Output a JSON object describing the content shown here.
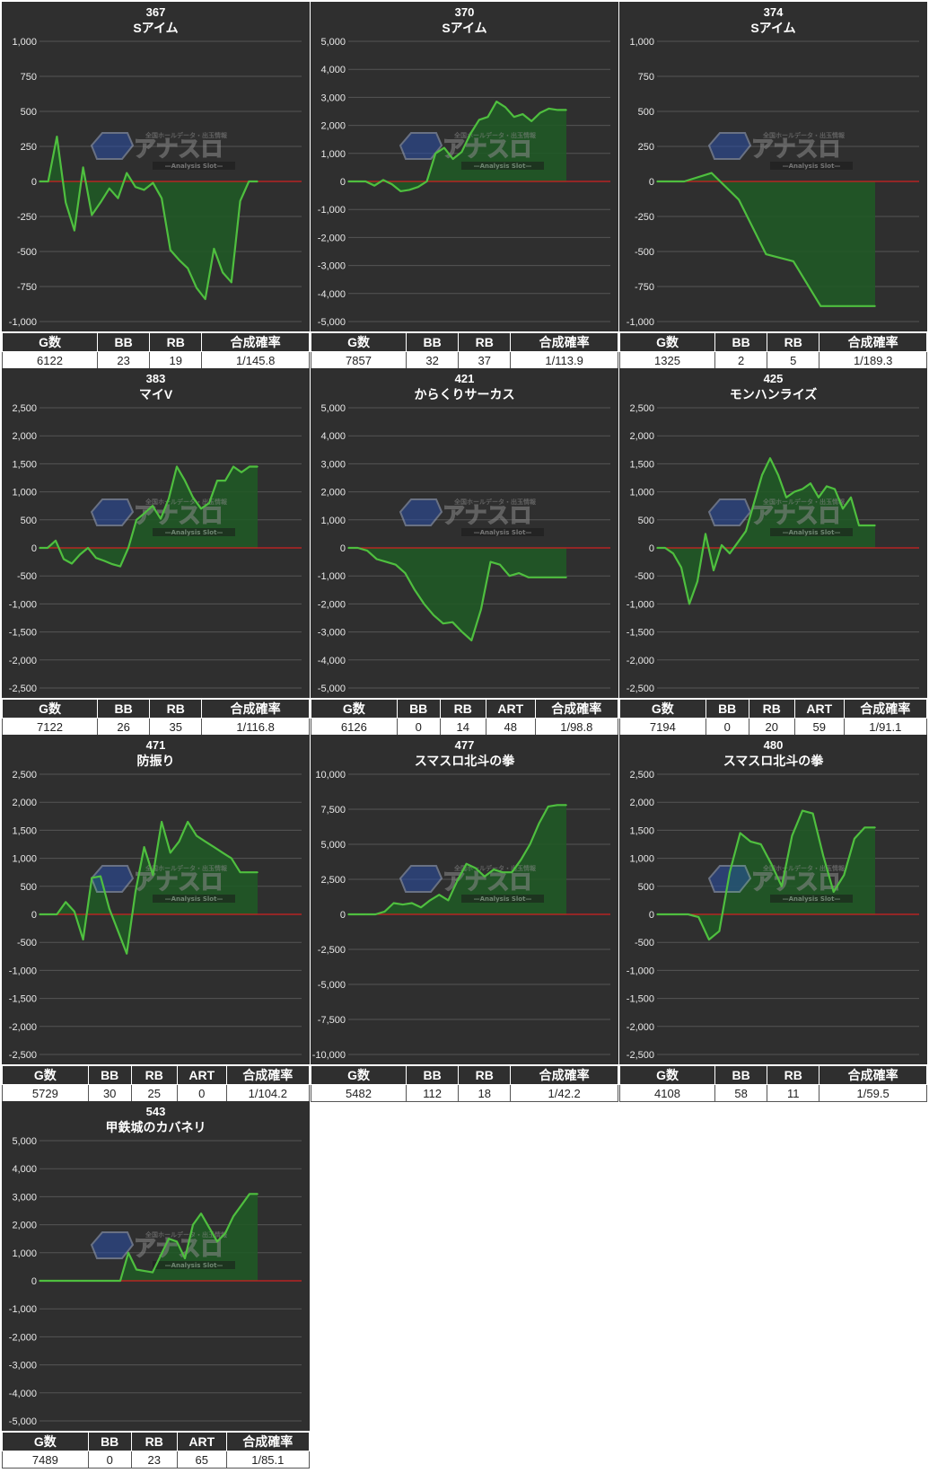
{
  "watermark": {
    "main": "アナスロ",
    "sub": "—Analysis Slot—",
    "top": "全国ホールデータ・出玉情報"
  },
  "colors": {
    "background": "#2f2f2f",
    "line": "#4fbf3f",
    "fill": "#1f5a24",
    "zero_line": "#d02020",
    "grid": "#555555"
  },
  "panels": [
    {
      "number": "367",
      "name": "Sアイム",
      "stats": {
        "headers": [
          "G数",
          "BB",
          "RB",
          "合成確率"
        ],
        "values": [
          "6122",
          "23",
          "19",
          "1/145.8"
        ]
      },
      "chart_data": {
        "type": "area",
        "ylim": [
          -1000,
          1000
        ],
        "yticks": [
          1000,
          750,
          500,
          250,
          0,
          -250,
          -500,
          -750,
          -1000
        ],
        "y": [
          0,
          0,
          320,
          -150,
          -350,
          100,
          -240,
          -150,
          -50,
          -120,
          60,
          -40,
          -60,
          -10,
          -120,
          -490,
          -560,
          -620,
          -760,
          -840,
          -480,
          -650,
          -720,
          -140,
          0,
          0
        ]
      }
    },
    {
      "number": "370",
      "name": "Sアイム",
      "stats": {
        "headers": [
          "G数",
          "BB",
          "RB",
          "合成確率"
        ],
        "values": [
          "7857",
          "32",
          "37",
          "1/113.9"
        ]
      },
      "chart_data": {
        "type": "area",
        "ylim": [
          -5000,
          5000
        ],
        "yticks": [
          5000,
          4000,
          3000,
          2000,
          1000,
          0,
          -1000,
          -2000,
          -3000,
          -4000,
          -5000
        ],
        "y": [
          0,
          0,
          0,
          -150,
          50,
          -100,
          -350,
          -300,
          -200,
          0,
          1000,
          1200,
          800,
          1050,
          1700,
          2200,
          2300,
          2850,
          2650,
          2300,
          2400,
          2150,
          2450,
          2600,
          2550,
          2550
        ]
      }
    },
    {
      "number": "374",
      "name": "Sアイム",
      "stats": {
        "headers": [
          "G数",
          "BB",
          "RB",
          "合成確率"
        ],
        "values": [
          "1325",
          "2",
          "5",
          "1/189.3"
        ]
      },
      "chart_data": {
        "type": "area",
        "ylim": [
          -1000,
          1000
        ],
        "yticks": [
          1000,
          750,
          500,
          250,
          0,
          -250,
          -500,
          -750,
          -1000
        ],
        "y": [
          0,
          0,
          60,
          -130,
          -520,
          -570,
          -890,
          -890,
          -890
        ]
      }
    },
    {
      "number": "383",
      "name": "マイV",
      "stats": {
        "headers": [
          "G数",
          "BB",
          "RB",
          "合成確率"
        ],
        "values": [
          "7122",
          "26",
          "35",
          "1/116.8"
        ]
      },
      "chart_data": {
        "type": "area",
        "ylim": [
          -2500,
          2500
        ],
        "yticks": [
          2500,
          2000,
          1500,
          1000,
          500,
          0,
          -500,
          -1000,
          -1500,
          -2000,
          -2500
        ],
        "y": [
          0,
          0,
          130,
          -200,
          -280,
          -120,
          0,
          -180,
          -230,
          -290,
          -330,
          0,
          500,
          620,
          750,
          520,
          880,
          1450,
          1200,
          900,
          700,
          800,
          1200,
          1200,
          1450,
          1350,
          1450,
          1450
        ]
      }
    },
    {
      "number": "421",
      "name": "からくりサーカス",
      "stats": {
        "headers": [
          "G数",
          "BB",
          "RB",
          "ART",
          "合成確率"
        ],
        "values": [
          "6126",
          "0",
          "14",
          "48",
          "1/98.8"
        ]
      },
      "chart_data": {
        "type": "area",
        "ylim": [
          -5000,
          5000
        ],
        "yticks": [
          5000,
          4000,
          3000,
          2000,
          1000,
          0,
          -1000,
          -2000,
          -3000,
          -4000,
          -5000
        ],
        "y": [
          0,
          0,
          -100,
          -400,
          -500,
          -600,
          -900,
          -1500,
          -2000,
          -2400,
          -2700,
          -2650,
          -3000,
          -3300,
          -2200,
          -500,
          -600,
          -1000,
          -900,
          -1050,
          -1050,
          -1050,
          -1050,
          -1050
        ]
      }
    },
    {
      "number": "425",
      "name": "モンハンライズ",
      "stats": {
        "headers": [
          "G数",
          "BB",
          "RB",
          "ART",
          "合成確率"
        ],
        "values": [
          "7194",
          "0",
          "20",
          "59",
          "1/91.1"
        ]
      },
      "chart_data": {
        "type": "area",
        "ylim": [
          -2500,
          2500
        ],
        "yticks": [
          2500,
          2000,
          1500,
          1000,
          500,
          0,
          -500,
          -1000,
          -1500,
          -2000,
          -2500
        ],
        "y": [
          0,
          0,
          -100,
          -350,
          -1000,
          -600,
          250,
          -400,
          50,
          -100,
          100,
          300,
          800,
          1300,
          1600,
          1300,
          900,
          1000,
          1050,
          1150,
          900,
          1100,
          1050,
          700,
          900,
          400,
          400,
          400
        ]
      }
    },
    {
      "number": "471",
      "name": "防振り",
      "stats": {
        "headers": [
          "G数",
          "BB",
          "RB",
          "ART",
          "合成確率"
        ],
        "values": [
          "5729",
          "30",
          "25",
          "0",
          "1/104.2"
        ]
      },
      "chart_data": {
        "type": "area",
        "ylim": [
          -2500,
          2500
        ],
        "yticks": [
          2500,
          2000,
          1500,
          1000,
          500,
          0,
          -500,
          -1000,
          -1500,
          -2000,
          -2500
        ],
        "y": [
          0,
          0,
          0,
          220,
          50,
          -450,
          650,
          680,
          100,
          -300,
          -700,
          400,
          1200,
          700,
          1650,
          1100,
          1300,
          1650,
          1400,
          1300,
          1200,
          1100,
          1000,
          750,
          750,
          750
        ]
      }
    },
    {
      "number": "477",
      "name": "スマスロ北斗の拳",
      "stats": {
        "headers": [
          "G数",
          "BB",
          "RB",
          "合成確率"
        ],
        "values": [
          "5482",
          "112",
          "18",
          "1/42.2"
        ]
      },
      "chart_data": {
        "type": "area",
        "ylim": [
          -10000,
          10000
        ],
        "yticks": [
          10000,
          7500,
          5000,
          2500,
          0,
          -2500,
          -5000,
          -7500,
          -10000
        ],
        "y": [
          0,
          0,
          0,
          0,
          200,
          800,
          700,
          800,
          500,
          1000,
          1400,
          1000,
          2400,
          3600,
          3300,
          2700,
          3200,
          3000,
          3000,
          3900,
          5000,
          6500,
          7700,
          7800,
          7800
        ]
      }
    },
    {
      "number": "480",
      "name": "スマスロ北斗の拳",
      "stats": {
        "headers": [
          "G数",
          "BB",
          "RB",
          "合成確率"
        ],
        "values": [
          "4108",
          "58",
          "11",
          "1/59.5"
        ]
      },
      "chart_data": {
        "type": "area",
        "ylim": [
          -2500,
          2500
        ],
        "yticks": [
          2500,
          2000,
          1500,
          1000,
          500,
          0,
          -500,
          -1000,
          -1500,
          -2000,
          -2500
        ],
        "y": [
          0,
          0,
          0,
          0,
          -50,
          -450,
          -300,
          750,
          1450,
          1300,
          1250,
          900,
          500,
          1400,
          1850,
          1800,
          1050,
          400,
          700,
          1350,
          1550,
          1550
        ]
      }
    },
    {
      "number": "543",
      "name": "甲鉄城のカバネリ",
      "stats": {
        "headers": [
          "G数",
          "BB",
          "RB",
          "ART",
          "合成確率"
        ],
        "values": [
          "7489",
          "0",
          "23",
          "65",
          "1/85.1"
        ]
      },
      "chart_data": {
        "type": "area",
        "ylim": [
          -5000,
          5000
        ],
        "yticks": [
          5000,
          4000,
          3000,
          2000,
          1000,
          0,
          -1000,
          -2000,
          -3000,
          -4000,
          -5000
        ],
        "y": [
          0,
          0,
          0,
          0,
          0,
          0,
          0,
          0,
          0,
          0,
          0,
          1000,
          400,
          350,
          300,
          900,
          1500,
          1400,
          800,
          2000,
          2400,
          1900,
          1400,
          1700,
          2300,
          2700,
          3100,
          3100
        ]
      }
    }
  ]
}
